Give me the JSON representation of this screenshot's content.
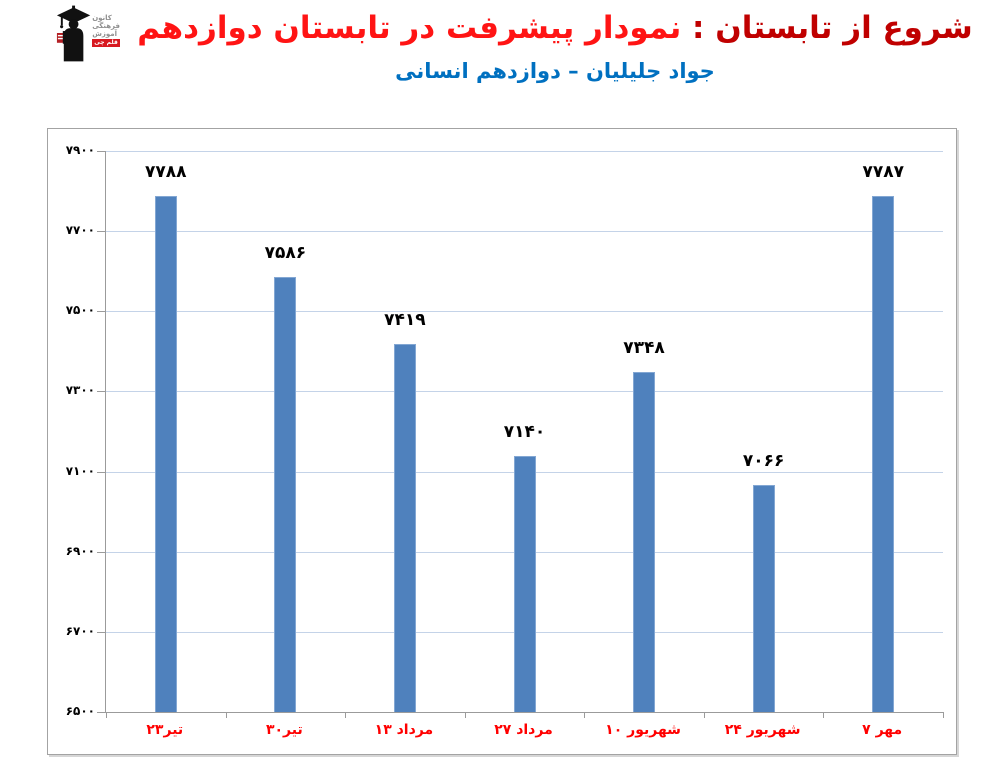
{
  "logo": {
    "lines": [
      "کانون",
      "فرهنگی",
      "آموزش"
    ],
    "badge": "قلم چی",
    "badge_color": "#d71920",
    "text_color": "#8f8f8f"
  },
  "header": {
    "title_prefix": "شروع از تابستان : ",
    "title_main": "نمودار پیشرفت در تابستان دوازدهم",
    "title_prefix_color": "#c00000",
    "title_main_color": "#ff1414",
    "subtitle": "جواد جلیلیان – دوازدهم انسانی",
    "subtitle_color": "#0070c0"
  },
  "chart_data": {
    "type": "bar",
    "title": "شروع از تابستان : نمودار پیشرفت در تابستان دوازدهم",
    "subtitle": "جواد جلیلیان – دوازدهم انسانی",
    "categories": [
      "۲۳تیر",
      "۳۰تیر",
      "۱۳ مرداد",
      "۲۷ مرداد",
      "۱۰ شهریور",
      "۲۴ شهریور",
      "۷ مهر"
    ],
    "values": [
      7788,
      7586,
      7419,
      7140,
      7348,
      7066,
      7787
    ],
    "value_labels": [
      "۷۷۸۸",
      "۷۵۸۶",
      "۷۴۱۹",
      "۷۱۴۰",
      "۷۳۴۸",
      "۷۰۶۶",
      "۷۷۸۷"
    ],
    "ylim": [
      6500,
      7900
    ],
    "y_ticks": [
      7900,
      7700,
      7500,
      7300,
      7100,
      6900,
      6700,
      6500
    ],
    "y_tick_labels": [
      "۷۹۰۰",
      "۷۷۰۰",
      "۷۵۰۰",
      "۷۳۰۰",
      "۷۱۰۰",
      "۶۹۰۰",
      "۶۷۰۰",
      "۶۵۰۰"
    ],
    "grid": true,
    "legend": false,
    "bar_color": "#4f81bd",
    "bar_border_color": "#83a7d3",
    "grid_color": "#c4d3e8",
    "axis_color": "#9b9b9b",
    "value_label_color": "#000000",
    "category_label_color": "#ff0000"
  }
}
